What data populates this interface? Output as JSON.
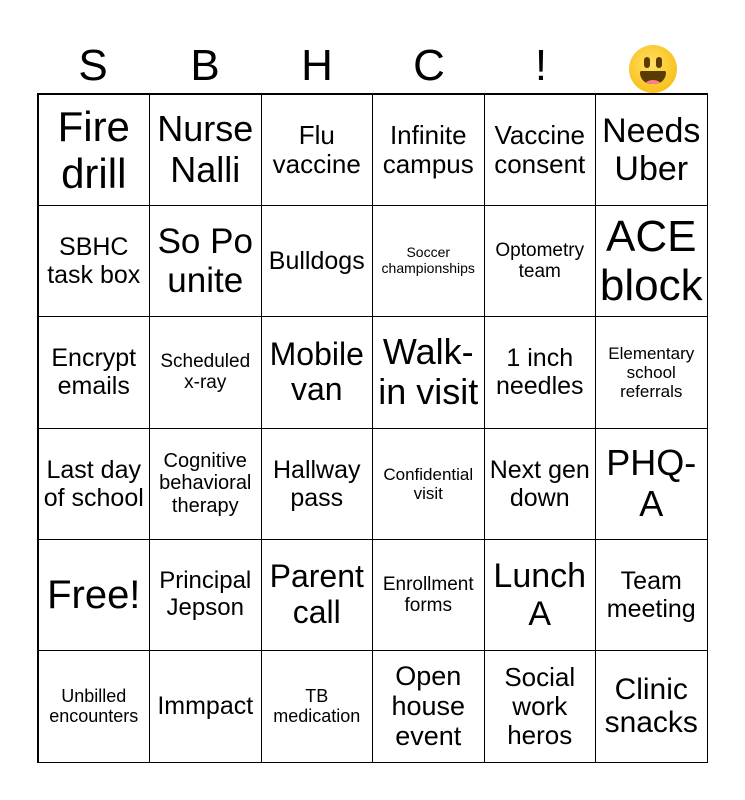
{
  "header": [
    "S",
    "B",
    "H",
    "C",
    "!"
  ],
  "header_emoji": "smiling-face-with-open-mouth",
  "grid": {
    "rows": [
      [
        "Fire drill",
        "Nurse Nalli",
        "Flu vaccine",
        "Infinite campus",
        "Vaccine consent",
        "Needs Uber"
      ],
      [
        "SBHC task box",
        "So Po unite",
        "Bulldogs",
        "Soccer championships",
        "Optometry team",
        "ACE block"
      ],
      [
        "Encrypt emails",
        "Scheduled x-ray",
        "Mobile van",
        "Walk-in visit",
        "1 inch needles",
        "Elementary school referrals"
      ],
      [
        "Last day of school",
        "Cognitive behavioral therapy",
        "Hallway pass",
        "Confidential visit",
        "Next gen down",
        "PHQ-A"
      ],
      [
        "Free!",
        "Principal Jepson",
        "Parent call",
        "Enrollment forms",
        "Lunch A",
        "Team meeting"
      ],
      [
        "Unbilled encounters",
        "Immpact",
        "TB medication",
        "Open house event",
        "Social work heros",
        "Clinic snacks"
      ]
    ]
  }
}
